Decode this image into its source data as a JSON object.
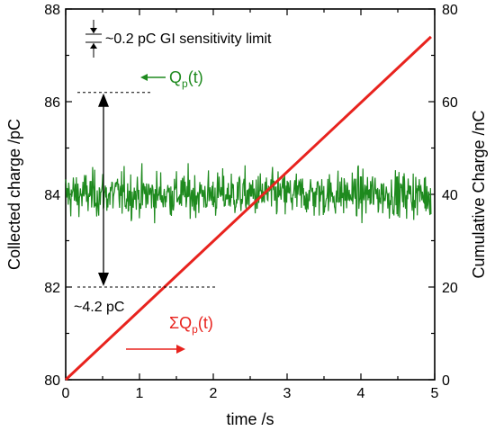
{
  "chart_data": {
    "type": "line",
    "x": {
      "label": "time /s",
      "range": [
        0,
        5
      ],
      "ticks": [
        0,
        1,
        2,
        3,
        4,
        5
      ],
      "tick_labels": [
        "0",
        "1",
        "2",
        "3",
        "4",
        "5"
      ]
    },
    "y_left": {
      "label": "Collected charge /pC",
      "range": [
        80,
        88
      ],
      "ticks": [
        80,
        82,
        84,
        86,
        88
      ],
      "tick_labels": [
        "80",
        "82",
        "84",
        "86",
        "88"
      ]
    },
    "y_right": {
      "label": "Cumulative Charge /nC",
      "range": [
        0,
        80
      ],
      "ticks": [
        0,
        20,
        40,
        60,
        80
      ],
      "tick_labels": [
        "0",
        "20",
        "40",
        "60",
        "80"
      ]
    },
    "series": [
      {
        "name": "Q_p(t)",
        "axis": "left",
        "color": "#1e8a1e",
        "mean": 84.0,
        "noise_peak_to_peak": 4.2,
        "n_points": 720,
        "x_start": 0,
        "x_end": 4.95
      },
      {
        "name": "ΣQ_p(t)",
        "axis": "right",
        "color": "#e8231e",
        "x": [
          0,
          4.95
        ],
        "values": [
          0,
          74
        ]
      }
    ],
    "annotations": {
      "sensitivity": "~0.2 pC GI sensitivity limit",
      "peak_to_peak": "~4.2 pC",
      "qp_label_main": "Q",
      "qp_label_sub": "p",
      "qp_label_tail": "(t)",
      "sum_label_main": "ΣQ",
      "sum_label_sub": "p",
      "sum_label_tail": "(t)",
      "peak_upper_value": 86.2,
      "peak_lower_value": 82.0
    },
    "grid": false
  }
}
